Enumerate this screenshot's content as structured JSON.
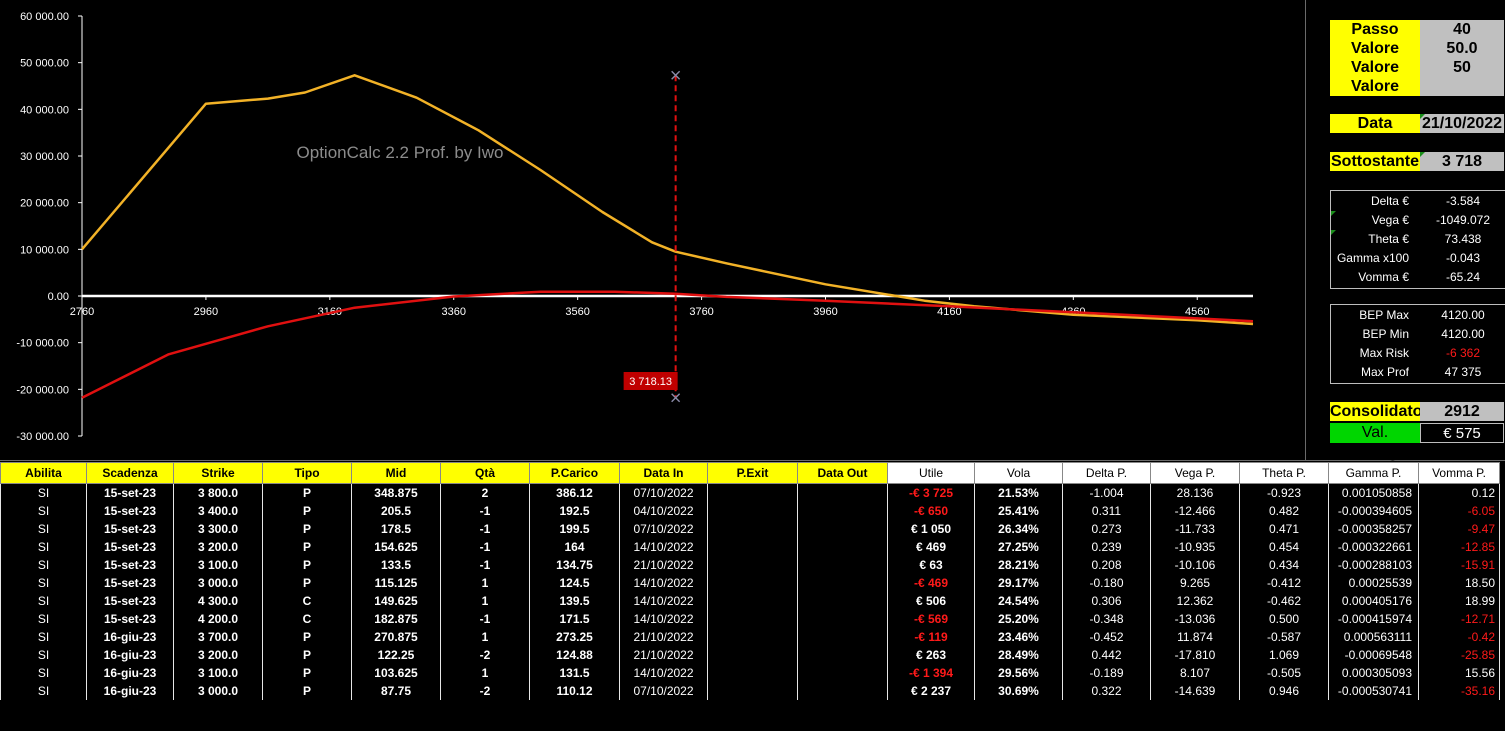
{
  "watermark": "OptionCalc 2.2 Prof. by Iwo",
  "chart_data": {
    "type": "line",
    "x_ticks": [
      "2760",
      "2960",
      "3160",
      "3360",
      "3560",
      "3760",
      "3960",
      "4160",
      "4360",
      "4560"
    ],
    "y_ticks": [
      "60 000.00",
      "50 000.00",
      "40 000.00",
      "30 000.00",
      "20 000.00",
      "10 000.00",
      "0.00",
      "-10 000.00",
      "-20 000.00",
      "-30 000.00"
    ],
    "xlim": [
      2760,
      4650
    ],
    "ylim": [
      -30000,
      60000
    ],
    "grid": false,
    "zero_line": true,
    "series": [
      {
        "color": "#f2b227",
        "points": [
          [
            2760,
            10000
          ],
          [
            2960,
            41200
          ],
          [
            3060,
            42300
          ],
          [
            3120,
            43600
          ],
          [
            3200,
            47300
          ],
          [
            3300,
            42500
          ],
          [
            3400,
            35500
          ],
          [
            3500,
            27000
          ],
          [
            3600,
            18000
          ],
          [
            3680,
            11500
          ],
          [
            3718,
            9500
          ],
          [
            3800,
            7000
          ],
          [
            3960,
            2500
          ],
          [
            4120,
            -1000
          ],
          [
            4200,
            -2200
          ],
          [
            4360,
            -4000
          ],
          [
            4560,
            -5200
          ],
          [
            4650,
            -6000
          ]
        ]
      },
      {
        "color": "#e01010",
        "points": [
          [
            2760,
            -21800
          ],
          [
            2900,
            -12500
          ],
          [
            3060,
            -6500
          ],
          [
            3200,
            -2500
          ],
          [
            3360,
            -100
          ],
          [
            3500,
            900
          ],
          [
            3620,
            900
          ],
          [
            3718,
            500
          ],
          [
            3800,
            -200
          ],
          [
            3960,
            -1000
          ],
          [
            4160,
            -2200
          ],
          [
            4360,
            -3500
          ],
          [
            4560,
            -4800
          ],
          [
            4650,
            -5400
          ]
        ]
      }
    ],
    "cursor": {
      "x": 3718.13,
      "y_top": 47300,
      "y_bottom": -21800,
      "label": "3 718.13",
      "color": "#e01010"
    }
  },
  "panel": {
    "passo_label": "Passo Grafico",
    "passo_value": "40",
    "opzioni_label": "Valore Opzioni",
    "opzioni_value": "50.0",
    "future_label": "Valore Future",
    "future_value": "50",
    "minif_label": "Valore MiniF.",
    "minif_value": "",
    "data_label": "Data",
    "data_value": "21/10/2022",
    "sottostante_label": "Sottostante",
    "sottostante_value": "3 718",
    "consolidato_label": "Consolidato",
    "consolidato_value": "2912",
    "portafoglio_label": "Val. Portafoglio",
    "portafoglio_value": "€ 575"
  },
  "greeks": [
    {
      "label": "Delta €",
      "value": "-3.584"
    },
    {
      "label": "Vega €",
      "value": "-1049.072"
    },
    {
      "label": "Theta €",
      "value": "73.438"
    },
    {
      "label": "Gamma x100",
      "value": "-0.043"
    },
    {
      "label": "Vomma €",
      "value": "-65.24"
    }
  ],
  "bep": [
    {
      "label": "BEP Max",
      "value": "4120.00",
      "neg": false
    },
    {
      "label": "BEP Min",
      "value": "4120.00",
      "neg": false
    },
    {
      "label": "Max Risk",
      "value": "-6 362",
      "neg": true
    },
    {
      "label": "Max Prof",
      "value": "47 375",
      "neg": false
    }
  ],
  "table": {
    "headers": [
      "Abilita",
      "Scadenza",
      "Strike",
      "Tipo",
      "Mid",
      "Qtà",
      "P.Carico",
      "Data In",
      "P.Exit",
      "Data Out",
      "Utile",
      "Vola",
      "Delta P.",
      "Vega P.",
      "Theta P.",
      "Gamma P.",
      "Vomma P."
    ],
    "rows": [
      [
        "SI",
        "15-set-23",
        "3 800.0",
        "P",
        "348.875",
        "2",
        "386.12",
        "07/10/2022",
        "",
        "",
        "-€ 3 725",
        "21.53%",
        "-1.004",
        "28.136",
        "-0.923",
        "0.001050858",
        "0.12"
      ],
      [
        "SI",
        "15-set-23",
        "3 400.0",
        "P",
        "205.5",
        "-1",
        "192.5",
        "04/10/2022",
        "",
        "",
        "-€ 650",
        "25.41%",
        "0.311",
        "-12.466",
        "0.482",
        "-0.000394605",
        "-6.05"
      ],
      [
        "SI",
        "15-set-23",
        "3 300.0",
        "P",
        "178.5",
        "-1",
        "199.5",
        "07/10/2022",
        "",
        "",
        "€ 1 050",
        "26.34%",
        "0.273",
        "-11.733",
        "0.471",
        "-0.000358257",
        "-9.47"
      ],
      [
        "SI",
        "15-set-23",
        "3 200.0",
        "P",
        "154.625",
        "-1",
        "164",
        "14/10/2022",
        "",
        "",
        "€ 469",
        "27.25%",
        "0.239",
        "-10.935",
        "0.454",
        "-0.000322661",
        "-12.85"
      ],
      [
        "SI",
        "15-set-23",
        "3 100.0",
        "P",
        "133.5",
        "-1",
        "134.75",
        "21/10/2022",
        "",
        "",
        "€ 63",
        "28.21%",
        "0.208",
        "-10.106",
        "0.434",
        "-0.000288103",
        "-15.91"
      ],
      [
        "SI",
        "15-set-23",
        "3 000.0",
        "P",
        "115.125",
        "1",
        "124.5",
        "14/10/2022",
        "",
        "",
        "-€ 469",
        "29.17%",
        "-0.180",
        "9.265",
        "-0.412",
        "0.00025539",
        "18.50"
      ],
      [
        "SI",
        "15-set-23",
        "4 300.0",
        "C",
        "149.625",
        "1",
        "139.5",
        "14/10/2022",
        "",
        "",
        "€ 506",
        "24.54%",
        "0.306",
        "12.362",
        "-0.462",
        "0.000405176",
        "18.99"
      ],
      [
        "SI",
        "15-set-23",
        "4 200.0",
        "C",
        "182.875",
        "-1",
        "171.5",
        "14/10/2022",
        "",
        "",
        "-€ 569",
        "25.20%",
        "-0.348",
        "-13.036",
        "0.500",
        "-0.000415974",
        "-12.71"
      ],
      [
        "SI",
        "16-giu-23",
        "3 700.0",
        "P",
        "270.875",
        "1",
        "273.25",
        "21/10/2022",
        "",
        "",
        "-€ 119",
        "23.46%",
        "-0.452",
        "11.874",
        "-0.587",
        "0.000563111",
        "-0.42"
      ],
      [
        "SI",
        "16-giu-23",
        "3 200.0",
        "P",
        "122.25",
        "-2",
        "124.88",
        "21/10/2022",
        "",
        "",
        "€ 263",
        "28.49%",
        "0.442",
        "-17.810",
        "1.069",
        "-0.00069548",
        "-25.85"
      ],
      [
        "SI",
        "16-giu-23",
        "3 100.0",
        "P",
        "103.625",
        "1",
        "131.5",
        "14/10/2022",
        "",
        "",
        "-€ 1 394",
        "29.56%",
        "-0.189",
        "8.107",
        "-0.505",
        "0.000305093",
        "15.56"
      ],
      [
        "SI",
        "16-giu-23",
        "3 000.0",
        "P",
        "87.75",
        "-2",
        "110.12",
        "07/10/2022",
        "",
        "",
        "€ 2 237",
        "30.69%",
        "0.322",
        "-14.639",
        "0.946",
        "-0.000530741",
        "-35.16"
      ]
    ]
  }
}
